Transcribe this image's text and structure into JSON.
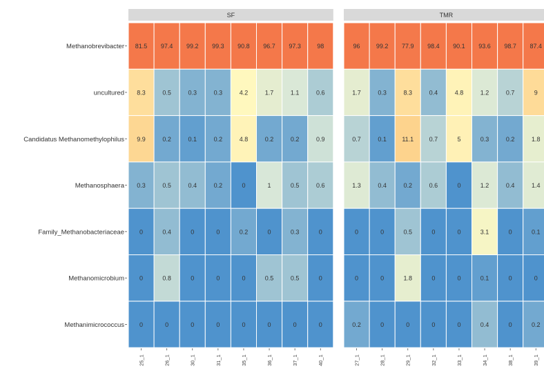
{
  "chart_data": {
    "type": "heatmap",
    "rows": [
      "Methanobrevibacter",
      "uncultured",
      "Candidatus Methanomethylophilus",
      "Methanosphaera",
      "Family_Methanobacteriaceae",
      "Methanomicrobium",
      "Methanimicrococcus"
    ],
    "panels": [
      {
        "name": "SF",
        "columns": [
          "25_1",
          "26_1",
          "30_1",
          "31_1",
          "35_1",
          "36_1",
          "37_1",
          "40_1"
        ],
        "values": [
          [
            "81.5",
            "97.4",
            "99.2",
            "99.3",
            "90.8",
            "96.7",
            "97.3",
            "98"
          ],
          [
            "8.3",
            "0.5",
            "0.3",
            "0.3",
            "4.2",
            "1.7",
            "1.1",
            "0.6"
          ],
          [
            "9.9",
            "0.2",
            "0.1",
            "0.2",
            "4.8",
            "0.2",
            "0.2",
            "0.9"
          ],
          [
            "0.3",
            "0.5",
            "0.4",
            "0.2",
            "0",
            "1",
            "0.5",
            "0.6"
          ],
          [
            "0",
            "0.4",
            "0",
            "0",
            "0.2",
            "0",
            "0.3",
            "0"
          ],
          [
            "0",
            "0.8",
            "0",
            "0",
            "0",
            "0.5",
            "0.5",
            "0"
          ],
          [
            "0",
            "0",
            "0",
            "0",
            "0",
            "0",
            "0",
            "0"
          ]
        ]
      },
      {
        "name": "TMR",
        "columns": [
          "27_1",
          "28_1",
          "29_1",
          "32_1",
          "33_1",
          "34_1",
          "38_1",
          "39_1"
        ],
        "values": [
          [
            "96",
            "99.2",
            "77.9",
            "98.4",
            "90.1",
            "93.6",
            "98.7",
            "87.4"
          ],
          [
            "1.7",
            "0.3",
            "8.3",
            "0.4",
            "4.8",
            "1.2",
            "0.7",
            "9"
          ],
          [
            "0.7",
            "0.1",
            "11.1",
            "0.7",
            "5",
            "0.3",
            "0.2",
            "1.8"
          ],
          [
            "1.3",
            "0.4",
            "0.2",
            "0.6",
            "0",
            "1.2",
            "0.4",
            "1.4"
          ],
          [
            "0",
            "0",
            "0.5",
            "0",
            "0",
            "3.1",
            "0",
            "0.1"
          ],
          [
            "0",
            "0",
            "1.8",
            "0",
            "0",
            "0.1",
            "0",
            "0"
          ],
          [
            "0.2",
            "0",
            "0",
            "0",
            "0",
            "0.4",
            "0",
            "0.2"
          ]
        ]
      }
    ],
    "legend": "none",
    "grid": false
  },
  "colors": {
    "strip_bg": "#d9d9d9",
    "high": "#f4784a",
    "mid": "#fdd18a",
    "low_mid": "#fff9c0",
    "low": "#d8e7d8",
    "zero": "#4f93cd"
  }
}
